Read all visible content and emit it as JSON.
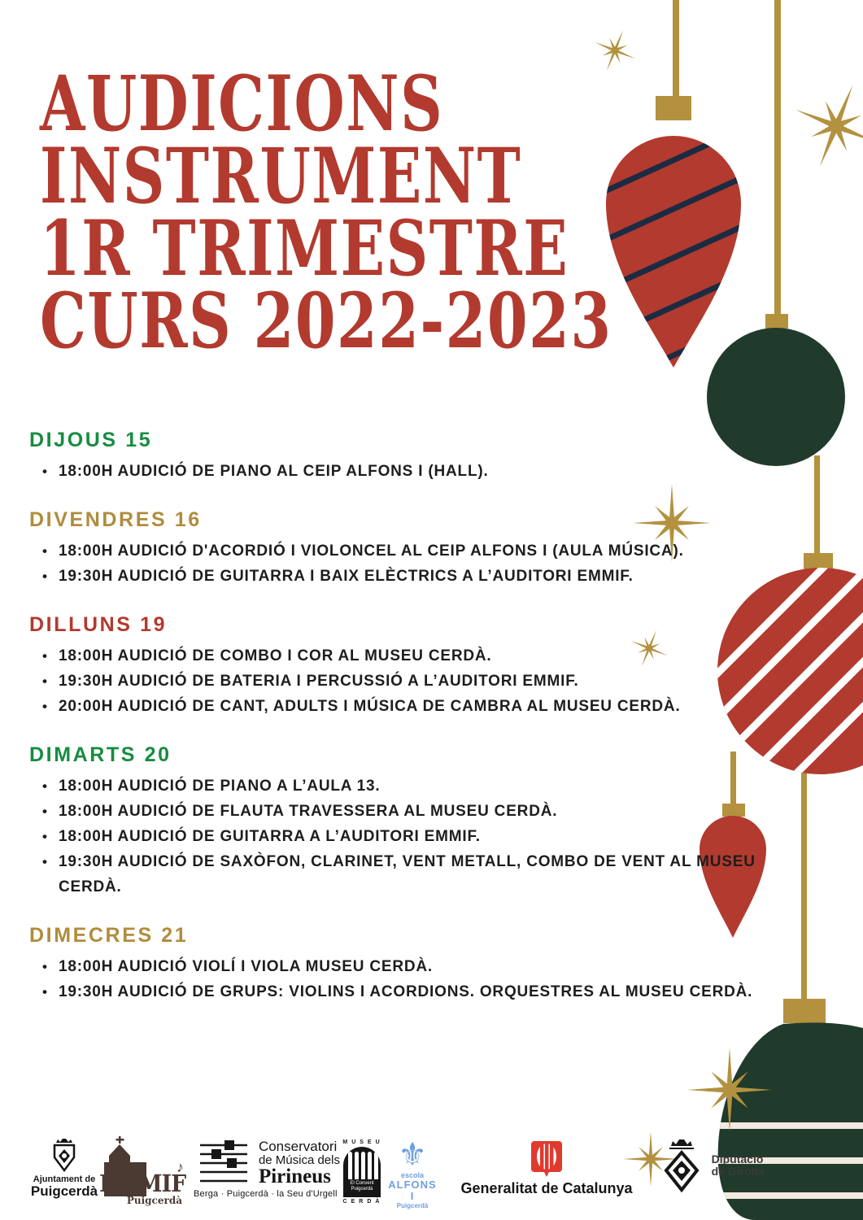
{
  "title": {
    "lines": [
      "AUDICIONS",
      "INSTRUMENT",
      "1R TRIMESTRE",
      "CURS 2022-2023"
    ]
  },
  "schedule": {
    "sections": [
      {
        "title": "DIJOUS 15",
        "color": "heading_green",
        "items": [
          "18:00H AUDICIÓ DE PIANO AL CEIP ALFONS I (HALL)."
        ]
      },
      {
        "title": "DIVENDRES 16",
        "color": "heading_gold",
        "items": [
          "18:00H AUDICIÓ D'ACORDIÓ I VIOLONCEL AL CEIP ALFONS I (AULA MÚSICA).",
          "19:30H AUDICIÓ DE GUITARRA I BAIX ELÈCTRICS A L’AUDITORI EMMIF."
        ]
      },
      {
        "title": "DILLUNS 19",
        "color": "brick_red",
        "items": [
          "18:00H AUDICIÓ DE COMBO I COR AL MUSEU CERDÀ.",
          "19:30H AUDICIÓ DE BATERIA I PERCUSSIÓ A L’AUDITORI EMMIF.",
          "20:00H AUDICIÓ DE CANT, ADULTS I MÚSICA DE CAMBRA AL MUSEU CERDÀ."
        ]
      },
      {
        "title": "DIMARTS 20",
        "color": "heading_green",
        "items": [
          "18:00H AUDICIÓ DE PIANO A L’AULA 13.",
          "18:00H AUDICIÓ DE FLAUTA TRAVESSERA AL MUSEU CERDÀ.",
          "18:00H AUDICIÓ DE GUITARRA A L’AUDITORI EMMIF.",
          "19:30H AUDICIÓ DE SAXÒFON, CLARINET, VENT METALL, COMBO DE VENT AL MUSEU CERDÀ."
        ]
      },
      {
        "title": "DIMECRES 21",
        "color": "heading_gold",
        "items": [
          "18:00H AUDICIÓ VIOLÍ I VIOLA MUSEU CERDÀ.",
          "19:30H AUDICIÓ DE GRUPS: VIOLINS I ACORDIONS. ORQUESTRES AL MUSEU CERDÀ."
        ]
      }
    ]
  },
  "footer": {
    "ajuntament": {
      "line1": "Ajuntament de",
      "line2": "Puigcerdà"
    },
    "emmif": {
      "name": "EMMIF",
      "sub": "Puigcerdà",
      "note": "♪"
    },
    "conservatori": {
      "line1": "Conservatori",
      "line2": "de Música dels",
      "line3": "Pirineus",
      "sub": "Berga · Puigcerdà · la Seu d'Urgell"
    },
    "museu": {
      "top": "MUSEU",
      "mid1": "El Convent",
      "mid2": "Puigcerdà",
      "bottom": "CERDÀ"
    },
    "alfons": {
      "fleur": "⚜",
      "line1": "escola",
      "line2": "ALFONS I",
      "line3": "Puigcerdà"
    },
    "generalitat": {
      "name": "Generalitat de Catalunya"
    },
    "diputacio": {
      "line1": "Diputació",
      "line2": "de Girona"
    }
  },
  "decorations": [
    "gold-star",
    "red-striped-teardrop-ornament",
    "green-ball-ornament",
    "red-white-striped-ball-ornament",
    "small-red-teardrop-ornament",
    "green-striped-bauble-ornament"
  ],
  "colors": {
    "brick_red": "#B23A2E",
    "gold": "#B3913F",
    "heading_green": "#178C41",
    "heading_gold": "#B08C3C",
    "dark_green": "#203A2B",
    "navy": "#1C2B42",
    "cream": "#F2E9E1",
    "text_black": "#1D1D1D",
    "emmif_brown": "#4B3A32",
    "alfons_blue": "#6FA0DF",
    "generalitat_red": "#E03A2F",
    "logo_black": "#161616"
  }
}
